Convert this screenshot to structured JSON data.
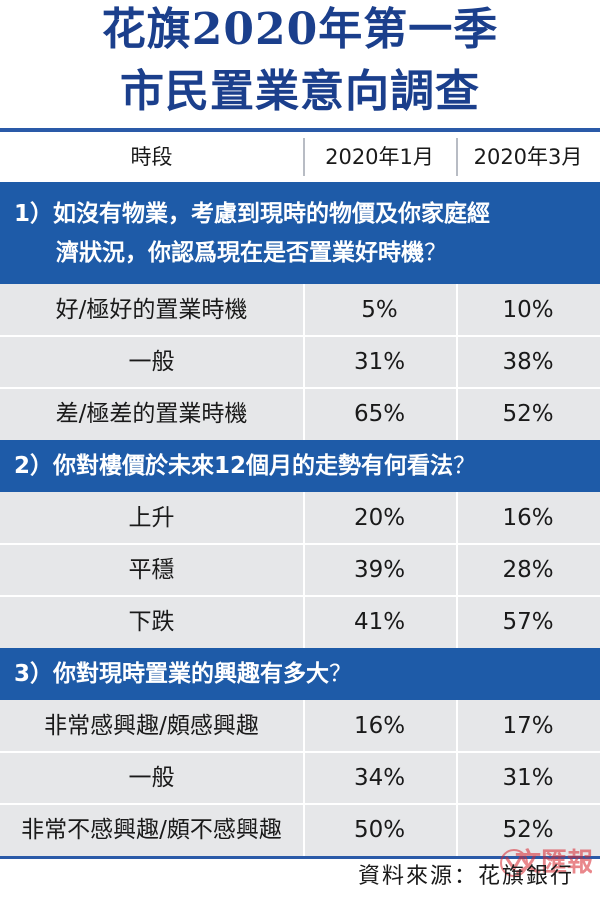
{
  "title": {
    "line1": "花旗2020年第一季",
    "line2": "市民置業意向調查"
  },
  "header": {
    "col_period": "時段",
    "col_jan": "2020年1月",
    "col_mar": "2020年3月"
  },
  "questions": [
    {
      "number": "1）",
      "text_line1": "如沒有物業，考慮到現時的物價及你家庭經",
      "text_line2": "濟狀況，你認爲現在是否置業好時機",
      "qmark": "？",
      "rows": [
        {
          "label": "好/極好的置業時機",
          "jan": "5%",
          "mar": "10%"
        },
        {
          "label": "一般",
          "jan": "31%",
          "mar": "38%"
        },
        {
          "label": "差/極差的置業時機",
          "jan": "65%",
          "mar": "52%"
        }
      ]
    },
    {
      "number": "2）",
      "text_line1": "你對樓價於未來12個月的走勢有何看法",
      "qmark": "？",
      "rows": [
        {
          "label": "上升",
          "jan": "20%",
          "mar": "16%"
        },
        {
          "label": "平穩",
          "jan": "39%",
          "mar": "28%"
        },
        {
          "label": "下跌",
          "jan": "41%",
          "mar": "57%"
        }
      ]
    },
    {
      "number": "3）",
      "text_line1": "你對現時置業的興趣有多大",
      "qmark": "？",
      "rows": [
        {
          "label": "非常感興趣/頗感興趣",
          "jan": "16%",
          "mar": "17%"
        },
        {
          "label": "一般",
          "jan": "34%",
          "mar": "31%"
        },
        {
          "label": "非常不感興趣/頗不感興趣",
          "jan": "50%",
          "mar": "52%"
        }
      ]
    }
  ],
  "source": "資料來源：花旗銀行",
  "watermark": {
    "text": "文匯報",
    "color": "#d8262e"
  },
  "colors": {
    "title": "#1b3f8c",
    "band": "#1e5ba8",
    "rule": "#2a5aa8",
    "shade": "#e6e7e9"
  }
}
